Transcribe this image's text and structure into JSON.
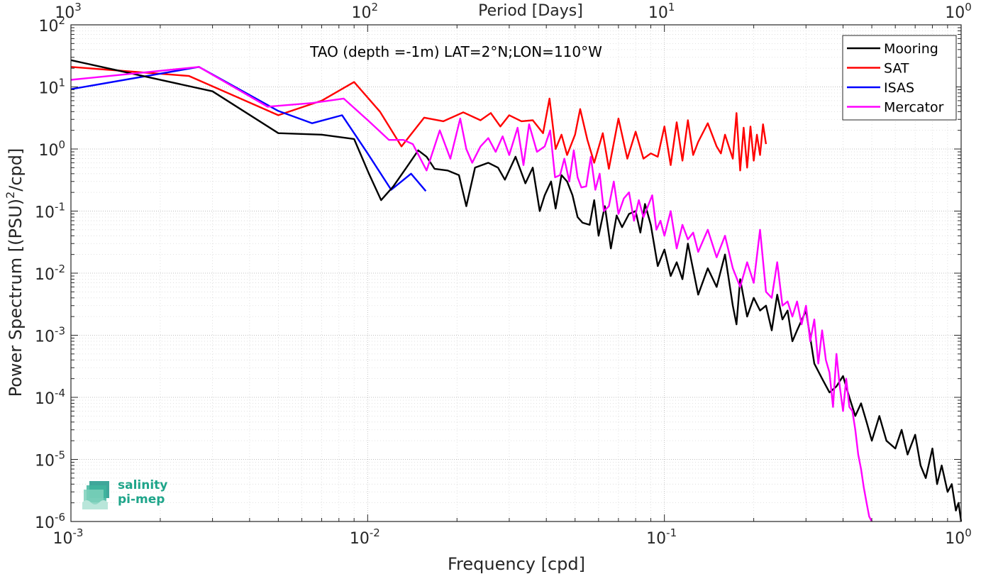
{
  "chart_data": {
    "type": "line",
    "title": "TAO (depth =-1m) LAT=2°N;LON=110°W",
    "xlabel": "Frequency [cpd]",
    "ylabel": "Power Spectrum [(PSU)^2/cpd]",
    "top_xlabel": "Period [Days]",
    "x_scale": "log",
    "y_scale": "log",
    "xlim": [
      0.001,
      1
    ],
    "ylim": [
      1e-06,
      100
    ],
    "grid": true,
    "legend_position": "top-right",
    "x_ticks": [
      {
        "value": 0.001,
        "base": "10",
        "exp": "-3"
      },
      {
        "value": 0.01,
        "base": "10",
        "exp": "-2"
      },
      {
        "value": 0.1,
        "base": "10",
        "exp": "-1"
      },
      {
        "value": 1,
        "base": "10",
        "exp": "0"
      }
    ],
    "top_ticks": [
      {
        "value": 0.001,
        "base": "10",
        "exp": "3"
      },
      {
        "value": 0.01,
        "base": "10",
        "exp": "2"
      },
      {
        "value": 0.1,
        "base": "10",
        "exp": "1"
      },
      {
        "value": 1,
        "base": "10",
        "exp": "0"
      }
    ],
    "y_ticks": [
      {
        "value": 1e-06,
        "base": "10",
        "exp": "-6"
      },
      {
        "value": 1e-05,
        "base": "10",
        "exp": "-5"
      },
      {
        "value": 0.0001,
        "base": "10",
        "exp": "-4"
      },
      {
        "value": 0.001,
        "base": "10",
        "exp": "-3"
      },
      {
        "value": 0.01,
        "base": "10",
        "exp": "-2"
      },
      {
        "value": 0.1,
        "base": "10",
        "exp": "-1"
      },
      {
        "value": 1,
        "base": "10",
        "exp": "0"
      },
      {
        "value": 10,
        "base": "10",
        "exp": "1"
      },
      {
        "value": 100,
        "base": "10",
        "exp": "2"
      }
    ],
    "series": [
      {
        "name": "Mooring",
        "color": "#000000",
        "x": [
          0.001,
          0.003,
          0.005,
          0.007,
          0.009,
          0.0101,
          0.0111,
          0.0122,
          0.0135,
          0.0148,
          0.0158,
          0.0168,
          0.0186,
          0.0203,
          0.0215,
          0.023,
          0.0255,
          0.0275,
          0.029,
          0.0315,
          0.034,
          0.036,
          0.038,
          0.0395,
          0.0415,
          0.043,
          0.045,
          0.047,
          0.049,
          0.051,
          0.053,
          0.056,
          0.058,
          0.06,
          0.063,
          0.066,
          0.069,
          0.072,
          0.076,
          0.08,
          0.083,
          0.086,
          0.09,
          0.095,
          0.1,
          0.105,
          0.11,
          0.115,
          0.12,
          0.13,
          0.14,
          0.15,
          0.16,
          0.17,
          0.175,
          0.18,
          0.19,
          0.2,
          0.21,
          0.22,
          0.23,
          0.24,
          0.25,
          0.26,
          0.27,
          0.28,
          0.3,
          0.32,
          0.34,
          0.36,
          0.38,
          0.4,
          0.42,
          0.44,
          0.46,
          0.48,
          0.5,
          0.53,
          0.56,
          0.6,
          0.63,
          0.66,
          0.7,
          0.73,
          0.76,
          0.8,
          0.83,
          0.86,
          0.9,
          0.93,
          0.96,
          0.98,
          1.0
        ],
        "y": [
          27,
          8.5,
          1.8,
          1.7,
          1.45,
          0.4,
          0.15,
          0.25,
          0.5,
          0.95,
          0.75,
          0.48,
          0.45,
          0.38,
          0.12,
          0.5,
          0.6,
          0.5,
          0.32,
          0.75,
          0.28,
          0.5,
          0.1,
          0.18,
          0.3,
          0.11,
          0.38,
          0.3,
          0.18,
          0.08,
          0.065,
          0.06,
          0.15,
          0.04,
          0.12,
          0.025,
          0.085,
          0.055,
          0.09,
          0.1,
          0.045,
          0.13,
          0.06,
          0.013,
          0.024,
          0.009,
          0.015,
          0.008,
          0.03,
          0.0045,
          0.012,
          0.006,
          0.02,
          0.003,
          0.0015,
          0.008,
          0.002,
          0.004,
          0.0025,
          0.003,
          0.0012,
          0.0045,
          0.0018,
          0.0025,
          0.0008,
          0.0012,
          0.0025,
          0.00035,
          0.0002,
          0.00012,
          0.00015,
          0.00022,
          0.0001,
          5e-05,
          8e-05,
          4e-05,
          2e-05,
          5e-05,
          2e-05,
          1.5e-05,
          3e-05,
          1.2e-05,
          2.5e-05,
          8e-06,
          5e-06,
          1.5e-05,
          4e-06,
          8e-06,
          3e-06,
          4e-06,
          1.5e-06,
          2e-06,
          1e-06
        ]
      },
      {
        "name": "SAT",
        "color": "#ff0000",
        "x": [
          0.001,
          0.0025,
          0.005,
          0.007,
          0.009,
          0.011,
          0.013,
          0.0155,
          0.018,
          0.021,
          0.024,
          0.026,
          0.028,
          0.03,
          0.033,
          0.036,
          0.039,
          0.041,
          0.043,
          0.045,
          0.047,
          0.05,
          0.052,
          0.055,
          0.058,
          0.062,
          0.065,
          0.07,
          0.075,
          0.08,
          0.085,
          0.09,
          0.095,
          0.1,
          0.105,
          0.11,
          0.115,
          0.12,
          0.125,
          0.13,
          0.14,
          0.15,
          0.155,
          0.16,
          0.17,
          0.175,
          0.18,
          0.185,
          0.19,
          0.195,
          0.2,
          0.205,
          0.21,
          0.215,
          0.22
        ],
        "y": [
          21,
          15,
          3.5,
          6,
          12,
          4,
          1.1,
          3.2,
          2.8,
          3.9,
          2.9,
          3.8,
          2.3,
          3.5,
          2.8,
          2.9,
          1.8,
          6.5,
          1.0,
          1.7,
          0.8,
          1.7,
          4.4,
          1.4,
          0.6,
          1.8,
          0.48,
          3.1,
          0.7,
          1.9,
          0.7,
          0.85,
          0.75,
          2.3,
          0.55,
          2.7,
          0.65,
          2.9,
          0.8,
          1.3,
          2.6,
          1.1,
          0.85,
          1.7,
          0.7,
          3.8,
          0.45,
          2.2,
          0.5,
          2.3,
          0.65,
          1.7,
          0.8,
          2.5,
          1.2
        ]
      },
      {
        "name": "ISAS",
        "color": "#0000ff",
        "x": [
          0.001,
          0.0027,
          0.005,
          0.0065,
          0.0082,
          0.01,
          0.012,
          0.014,
          0.0157
        ],
        "y": [
          9.2,
          21,
          4.1,
          2.6,
          3.5,
          0.85,
          0.22,
          0.4,
          0.21
        ]
      },
      {
        "name": "Mercator",
        "color": "#ff00ff",
        "x": [
          0.001,
          0.0027,
          0.0046,
          0.0065,
          0.0083,
          0.0101,
          0.0118,
          0.0132,
          0.0142,
          0.0158,
          0.0175,
          0.019,
          0.0205,
          0.0215,
          0.0225,
          0.024,
          0.0255,
          0.027,
          0.0285,
          0.03,
          0.032,
          0.0335,
          0.035,
          0.0372,
          0.0395,
          0.0412,
          0.0428,
          0.0445,
          0.046,
          0.0478,
          0.0495,
          0.051,
          0.0525,
          0.0545,
          0.0565,
          0.0585,
          0.0605,
          0.0625,
          0.065,
          0.0675,
          0.07,
          0.073,
          0.076,
          0.079,
          0.082,
          0.085,
          0.088,
          0.091,
          0.094,
          0.097,
          0.1,
          0.105,
          0.11,
          0.115,
          0.12,
          0.125,
          0.13,
          0.14,
          0.15,
          0.16,
          0.17,
          0.18,
          0.19,
          0.2,
          0.21,
          0.22,
          0.23,
          0.24,
          0.25,
          0.26,
          0.27,
          0.28,
          0.29,
          0.3,
          0.31,
          0.32,
          0.33,
          0.34,
          0.35,
          0.36,
          0.37,
          0.38,
          0.39,
          0.4,
          0.41,
          0.42,
          0.43,
          0.44,
          0.45,
          0.46,
          0.47,
          0.48,
          0.49,
          0.5
        ],
        "y": [
          13,
          21,
          4.8,
          5.5,
          6.5,
          2.8,
          1.4,
          1.4,
          1.2,
          0.45,
          2.0,
          0.7,
          3.1,
          1.0,
          0.6,
          1.1,
          1.5,
          0.9,
          1.6,
          0.8,
          2.2,
          0.55,
          2.5,
          0.9,
          1.1,
          2.0,
          0.35,
          0.38,
          0.7,
          0.3,
          0.95,
          0.35,
          0.24,
          0.25,
          0.75,
          0.22,
          0.4,
          0.1,
          0.12,
          0.3,
          0.09,
          0.16,
          0.2,
          0.07,
          0.15,
          0.08,
          0.12,
          0.18,
          0.05,
          0.07,
          0.04,
          0.1,
          0.025,
          0.06,
          0.035,
          0.045,
          0.022,
          0.05,
          0.018,
          0.04,
          0.012,
          0.006,
          0.015,
          0.007,
          0.05,
          0.005,
          0.004,
          0.015,
          0.003,
          0.0035,
          0.002,
          0.0035,
          0.0015,
          0.003,
          0.0008,
          0.0018,
          0.00035,
          0.0012,
          0.0004,
          0.00025,
          7e-05,
          0.0005,
          0.00015,
          6e-05,
          0.0002,
          7e-05,
          6e-05,
          3e-05,
          1.2e-05,
          7e-06,
          3.5e-06,
          2e-06,
          1.2e-06,
          1e-06
        ]
      }
    ]
  },
  "logo": {
    "line1": "salinity",
    "line2": "pi-mep"
  }
}
